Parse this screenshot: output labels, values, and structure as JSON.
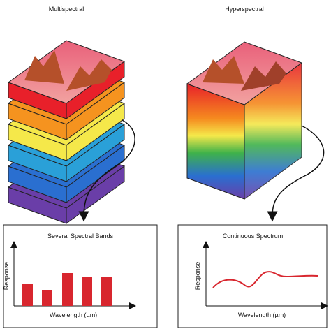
{
  "left": {
    "title": "Multispectral",
    "panel": {
      "title": "Several Spectral Bands",
      "y_label": "Response",
      "x_label": "Wavelength (µm)"
    }
  },
  "right": {
    "title": "Hyperspectral",
    "panel": {
      "title": "Continuous Spectrum",
      "y_label": "Response",
      "x_label": "Wavelength (µm)"
    }
  }
}
